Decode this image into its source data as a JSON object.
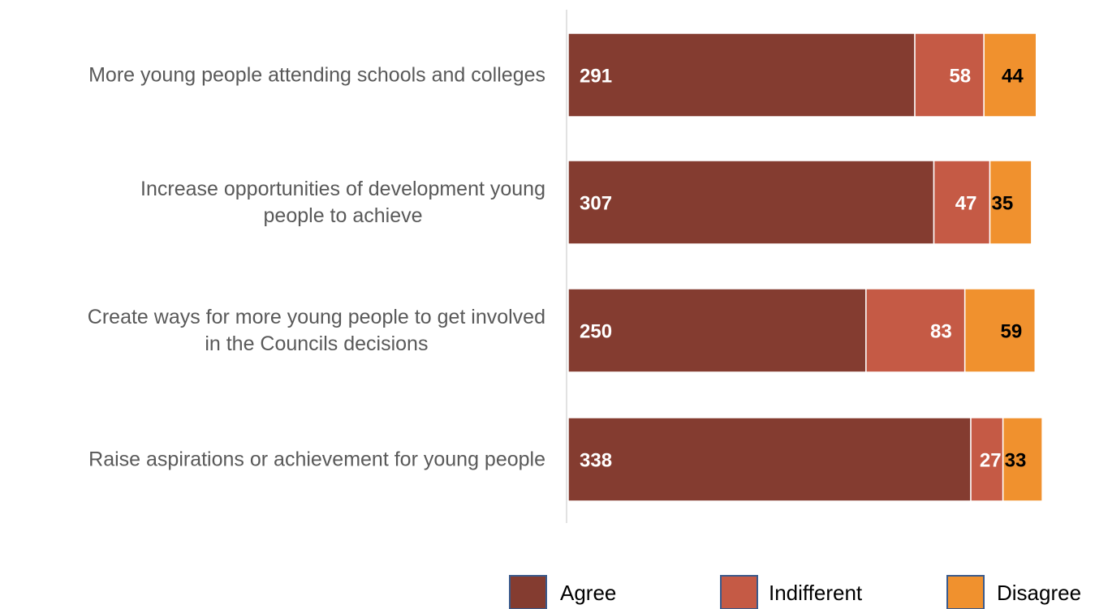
{
  "chart_data": {
    "type": "bar",
    "orientation": "horizontal",
    "stacked": true,
    "categories": [
      [
        "More young people attending schools and colleges"
      ],
      [
        "Increase opportunities of development  young",
        "people to achieve"
      ],
      [
        "Create ways for more young people to get involved",
        "in the Councils decisions"
      ],
      [
        "Raise aspirations or achievement for young people"
      ]
    ],
    "series": [
      {
        "name": "Agree",
        "color": "#843C30",
        "label_color": "#ffffff",
        "values": [
          291,
          307,
          250,
          338
        ]
      },
      {
        "name": "Indifferent",
        "color": "#C55A45",
        "label_color": "#ffffff",
        "values": [
          58,
          47,
          83,
          27
        ]
      },
      {
        "name": "Disagree",
        "color": "#F0912E",
        "label_color": "#000000",
        "values": [
          44,
          35,
          59,
          33
        ]
      }
    ],
    "title": "",
    "xlabel": "",
    "ylabel": "",
    "xlim": [
      0,
      400
    ],
    "grid": false,
    "legend_position": "bottom-right"
  }
}
